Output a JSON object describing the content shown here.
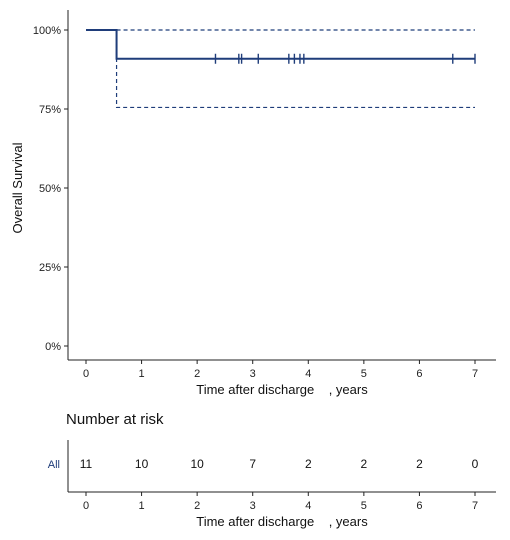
{
  "chart_data": [
    {
      "type": "line",
      "ylabel": "Overall Survival",
      "xlabel": "Time after discharge    , years",
      "xlim": [
        0,
        7
      ],
      "ylim": [
        0,
        100
      ],
      "x_ticks": [
        "0",
        "1",
        "2",
        "3",
        "4",
        "5",
        "6",
        "7"
      ],
      "y_ticks": [
        "0%",
        "25%",
        "50%",
        "75%",
        "100%"
      ],
      "y_tick_values": [
        0,
        25,
        50,
        75,
        100
      ],
      "grid": false,
      "line_color": "#1f3d7a",
      "series": [
        {
          "x": [
            0,
            0.55,
            0.55,
            7
          ],
          "y": [
            100,
            100,
            90.9,
            90.9
          ],
          "style": "step-solid"
        },
        {
          "x": [
            0.55,
            7
          ],
          "y": [
            100,
            100
          ],
          "style": "dashed"
        },
        {
          "x": [
            0.55,
            0.55,
            7
          ],
          "y": [
            100,
            75.5,
            75.5
          ],
          "style": "dashed"
        }
      ],
      "censor_marks": {
        "x": [
          2.33,
          2.75,
          2.8,
          3.1,
          3.65,
          3.75,
          3.85,
          3.92,
          6.6,
          7.0
        ],
        "y": 90.9
      }
    },
    {
      "type": "table",
      "title": "Number at risk",
      "xlabel": "Time after discharge    , years",
      "x_ticks": [
        "0",
        "1",
        "2",
        "3",
        "4",
        "5",
        "6",
        "7"
      ],
      "strata_label": "All",
      "strata_color": "#1f3d7a",
      "values": [
        "11",
        "10",
        "10",
        "7",
        "2",
        "2",
        "2",
        "0"
      ]
    }
  ]
}
